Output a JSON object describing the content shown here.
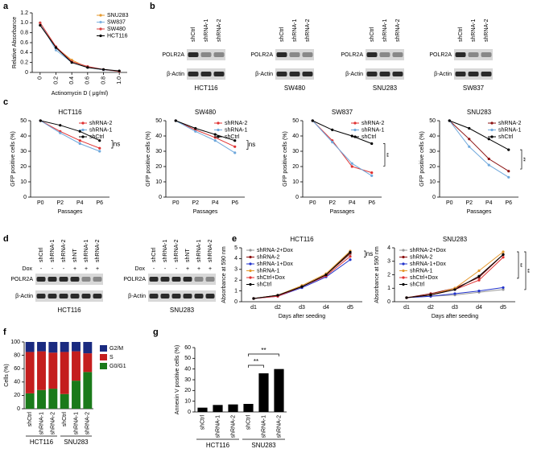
{
  "panel_labels": [
    "a",
    "b",
    "c",
    "d",
    "e",
    "f",
    "g"
  ],
  "blots": {
    "b": [
      {
        "lanes": [
          "shCtrl",
          "shRNA-1",
          "shRNA-2"
        ],
        "rows": [
          "POLR2A",
          "β-Actin"
        ],
        "cell_line": "HCT116"
      },
      {
        "lanes": [
          "shCtrl",
          "shRNA-1",
          "shRNA-2"
        ],
        "rows": [
          "POLR2A",
          "β-Actin"
        ],
        "cell_line": "SW480"
      },
      {
        "lanes": [
          "shCtrl",
          "shRNA-1",
          "shRNA-2"
        ],
        "rows": [
          "POLR2A",
          "β-Actin"
        ],
        "cell_line": "SNU283"
      },
      {
        "lanes": [
          "shCtrl",
          "shRNA-1",
          "shRNA-2"
        ],
        "rows": [
          "POLR2A",
          "β-Actin"
        ],
        "cell_line": "SW837"
      }
    ],
    "d": [
      {
        "lanes": [
          "shCtrl",
          "shRNA-1",
          "shRNA-2",
          "shNT",
          "shRNA-1",
          "shRNA-2"
        ],
        "dox_label": "Dox",
        "dox": [
          "-",
          "-",
          "-",
          "+",
          "+",
          "+"
        ],
        "rows": [
          "POLR2A",
          "β-Actin"
        ],
        "cell_line": "HCT116"
      },
      {
        "lanes": [
          "shCtrl",
          "shRNA-1",
          "shRNA-2",
          "shNT",
          "shRNA-1",
          "shRNA-2"
        ],
        "dox_label": "Dox",
        "dox": [
          "-",
          "-",
          "-",
          "+",
          "+",
          "+"
        ],
        "rows": [
          "POLR2A",
          "β-Actin"
        ],
        "cell_line": "SNU283"
      }
    ]
  },
  "chart_data": [
    {
      "type": "line",
      "y_label": "Relative Absorbance",
      "x_label": "Actinomycin D (  μg/ml)",
      "x": [
        0,
        0.2,
        0.4,
        0.6,
        0.8,
        1
      ],
      "xlim": [
        -0.1,
        1.1
      ],
      "xticks": [
        0,
        0.2,
        0.4,
        0.6,
        0.8,
        {
          "value": 1,
          "label": "1.0"
        }
      ],
      "ylim": [
        0,
        1.2
      ],
      "yticks": [
        0,
        0.2,
        0.4,
        0.6,
        0.8,
        {
          "value": 1,
          "label": "1.0"
        },
        1.2
      ],
      "legend": "upper right",
      "series": [
        {
          "name": "SNU283",
          "color": "#e69a2e",
          "values": [
            1.0,
            0.5,
            0.25,
            0.1,
            0.05,
            0.02
          ]
        },
        {
          "name": "SW837",
          "color": "#7fb3e0",
          "values": [
            1.0,
            0.45,
            0.2,
            0.1,
            0.05,
            0.02
          ]
        },
        {
          "name": "SW480",
          "color": "#d94040",
          "values": [
            1.0,
            0.52,
            0.22,
            0.12,
            0.06,
            0.02
          ]
        },
        {
          "name": "HCT116",
          "color": "#000000",
          "values": [
            0.95,
            0.5,
            0.2,
            0.1,
            0.06,
            0.03
          ]
        }
      ]
    },
    {
      "type": "line",
      "title": "HCT116",
      "y_label": "GFP positive cells (%)",
      "x_label": "Passages",
      "categories": [
        "P0",
        "P2",
        "P4",
        "P6"
      ],
      "ylim": [
        0,
        50
      ],
      "yticks": [
        0,
        10,
        20,
        30,
        40,
        50
      ],
      "legend": "upper right",
      "annotations": [
        "ns"
      ],
      "series": [
        {
          "name": "shRNA-2",
          "color": "#e03030",
          "values": [
            50,
            43,
            37,
            32
          ]
        },
        {
          "name": "shRNA-1",
          "color": "#6fa8dc",
          "values": [
            50,
            42,
            35,
            30
          ]
        },
        {
          "name": "shCtrl",
          "color": "#000000",
          "values": [
            50,
            47,
            43,
            37
          ]
        }
      ]
    },
    {
      "type": "line",
      "title": "SW480",
      "y_label": "GFP positive cells (%)",
      "x_label": "Passages",
      "categories": [
        "P0",
        "P2",
        "P4",
        "P6"
      ],
      "ylim": [
        0,
        50
      ],
      "yticks": [
        0,
        10,
        20,
        30,
        40,
        50
      ],
      "legend": "upper right",
      "annotations": [
        "ns"
      ],
      "series": [
        {
          "name": "shRNA-2",
          "color": "#e03030",
          "values": [
            50,
            44,
            39,
            33
          ]
        },
        {
          "name": "shRNA-1",
          "color": "#6fa8dc",
          "values": [
            50,
            43,
            37,
            29
          ]
        },
        {
          "name": "shCtrl",
          "color": "#000000",
          "values": [
            50,
            45,
            41,
            37
          ]
        }
      ]
    },
    {
      "type": "line",
      "title": "SW837",
      "y_label": "GFP positive cells (%)",
      "x_label": "Passages",
      "categories": [
        "P0",
        "P2",
        "P4",
        "P6"
      ],
      "ylim": [
        0,
        50
      ],
      "yticks": [
        0,
        10,
        20,
        30,
        40,
        50
      ],
      "legend": "upper right",
      "annotations": [
        "**"
      ],
      "series": [
        {
          "name": "shRNA-2",
          "color": "#e03030",
          "values": [
            50,
            37,
            20,
            16
          ]
        },
        {
          "name": "shRNA-1",
          "color": "#6fa8dc",
          "values": [
            50,
            36,
            22,
            14
          ]
        },
        {
          "name": "shCtrl",
          "color": "#000000",
          "values": [
            50,
            44,
            40,
            35
          ]
        }
      ]
    },
    {
      "type": "line",
      "title": "SNU283",
      "y_label": "GFP positive cells (%)",
      "x_label": "Passages",
      "categories": [
        "P0",
        "P2",
        "P4",
        "P6"
      ],
      "ylim": [
        0,
        50
      ],
      "yticks": [
        0,
        10,
        20,
        30,
        40,
        50
      ],
      "legend": "upper right",
      "annotations": [
        "**"
      ],
      "series": [
        {
          "name": "shRNA-2",
          "color": "#8b1010",
          "values": [
            50,
            38,
            25,
            17
          ]
        },
        {
          "name": "shRNA-1",
          "color": "#6fa8dc",
          "values": [
            50,
            33,
            21,
            13
          ]
        },
        {
          "name": "shCtrl",
          "color": "#000000",
          "values": [
            50,
            45,
            38,
            31
          ]
        }
      ]
    },
    {
      "type": "line",
      "title": "HCT116",
      "y_label": "Absorbance at 590 nm",
      "x_label": "Days after seeding",
      "categories": [
        "d1",
        "d2",
        "d3",
        "d4",
        "d5"
      ],
      "ylim": [
        0,
        5
      ],
      "yticks": [
        0,
        1,
        2,
        3,
        4,
        5
      ],
      "legend": "upper left",
      "annotations": [
        "ns"
      ],
      "series": [
        {
          "name": "shRNA-2+Dox",
          "color": "#999999",
          "values": [
            0.3,
            0.6,
            1.4,
            2.5,
            4.4
          ]
        },
        {
          "name": "shRNA-2",
          "color": "#8b1010",
          "values": [
            0.3,
            0.6,
            1.4,
            2.5,
            4.5
          ]
        },
        {
          "name": "shRNA-1+Dox",
          "color": "#2233cc",
          "values": [
            0.3,
            0.5,
            1.3,
            2.3,
            3.9
          ]
        },
        {
          "name": "shRNA-1",
          "color": "#e69a2e",
          "values": [
            0.3,
            0.6,
            1.5,
            2.6,
            4.7
          ]
        },
        {
          "name": "shCtrl+Dox",
          "color": "#e03030",
          "values": [
            0.3,
            0.5,
            1.4,
            2.4,
            4.2
          ]
        },
        {
          "name": "shCtrl",
          "color": "#000000",
          "values": [
            0.3,
            0.6,
            1.4,
            2.5,
            4.6
          ]
        }
      ]
    },
    {
      "type": "line",
      "title": "SNU283",
      "y_label": "Absorbance at 590 nm",
      "x_label": "Days after seeding",
      "categories": [
        "d1",
        "d2",
        "d3",
        "d4",
        "d5"
      ],
      "ylim": [
        0,
        4
      ],
      "yticks": [
        0,
        1,
        2,
        3,
        4
      ],
      "legend": "upper left",
      "annotations": [
        "**",
        "**"
      ],
      "series": [
        {
          "name": "shRNA-2+Dox",
          "color": "#999999",
          "values": [
            0.3,
            0.4,
            0.5,
            0.7,
            0.9
          ]
        },
        {
          "name": "shRNA-2",
          "color": "#8b1010",
          "values": [
            0.3,
            0.6,
            1.0,
            1.8,
            3.5
          ]
        },
        {
          "name": "shRNA-1+Dox",
          "color": "#2233cc",
          "values": [
            0.3,
            0.4,
            0.6,
            0.8,
            1.05
          ]
        },
        {
          "name": "shRNA-1",
          "color": "#e69a2e",
          "values": [
            0.3,
            0.5,
            1.0,
            2.3,
            3.7
          ]
        },
        {
          "name": "shCtrl+Dox",
          "color": "#e03030",
          "values": [
            0.3,
            0.5,
            0.9,
            1.6,
            3.3
          ]
        },
        {
          "name": "shCtrl",
          "color": "#000000",
          "values": [
            0.3,
            0.5,
            0.9,
            1.9,
            3.5
          ]
        }
      ]
    },
    {
      "type": "stacked_bar",
      "y_label": "Cells (%)",
      "categories": [
        "shCtrl",
        "shRNA-1",
        "shRNA-2",
        "shCtrl",
        "shRNA-1",
        "shRNA-2"
      ],
      "groups": [
        "HCT116",
        "SNU283"
      ],
      "ylim": [
        0,
        100
      ],
      "yticks": [
        0,
        20,
        40,
        60,
        80,
        100
      ],
      "legend": "right",
      "series": [
        {
          "name": "G0/G1",
          "color": "#1a7a1a",
          "values": [
            23,
            28,
            30,
            22,
            42,
            55
          ]
        },
        {
          "name": "S",
          "color": "#c41e1e",
          "values": [
            62,
            58,
            54,
            63,
            44,
            28
          ]
        },
        {
          "name": "G2/M",
          "color": "#1a2a80",
          "values": [
            15,
            14,
            16,
            15,
            14,
            17
          ]
        }
      ]
    },
    {
      "type": "bar",
      "y_label": "Annexin V positive cells (%)",
      "categories": [
        "shCtrl",
        "shRNA-1",
        "shRNA-2",
        "shCtrl",
        "shRNA-1",
        "shRNA-2"
      ],
      "groups": [
        "HCT116",
        "SNU283"
      ],
      "ylim": [
        0,
        60
      ],
      "yticks": [
        0,
        10,
        20,
        30,
        40,
        50,
        60
      ],
      "color": "#000000",
      "values": [
        4,
        6.5,
        7,
        7.5,
        36,
        40
      ],
      "annotations": [
        "**",
        "**"
      ]
    }
  ]
}
